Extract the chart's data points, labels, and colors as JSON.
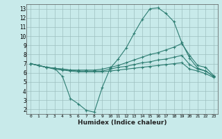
{
  "xlabel": "Humidex (Indice chaleur)",
  "xlim": [
    -0.5,
    23.5
  ],
  "ylim": [
    1.5,
    13.5
  ],
  "yticks": [
    2,
    3,
    4,
    5,
    6,
    7,
    8,
    9,
    10,
    11,
    12,
    13
  ],
  "xticks": [
    0,
    1,
    2,
    3,
    4,
    5,
    6,
    7,
    8,
    9,
    10,
    11,
    12,
    13,
    14,
    15,
    16,
    17,
    18,
    19,
    20,
    21,
    22,
    23
  ],
  "bg_color": "#c8eaea",
  "line_color": "#2e7d72",
  "grid_color": "#9dbfbf",
  "lines": [
    {
      "x": [
        0,
        1,
        2,
        3,
        4,
        5,
        6,
        7,
        8,
        9,
        10,
        11,
        12,
        13,
        14,
        15,
        16,
        17,
        18,
        19,
        20,
        21,
        22,
        23
      ],
      "y": [
        7.0,
        6.8,
        6.6,
        6.5,
        5.6,
        3.2,
        2.6,
        1.9,
        1.7,
        4.4,
        6.5,
        7.5,
        8.7,
        10.3,
        11.8,
        13.0,
        13.1,
        12.5,
        11.6,
        9.3,
        7.6,
        6.5,
        6.2,
        5.6
      ]
    },
    {
      "x": [
        0,
        1,
        2,
        3,
        4,
        5,
        6,
        7,
        8,
        9,
        10,
        11,
        12,
        13,
        14,
        15,
        16,
        17,
        18,
        19,
        20,
        21,
        22,
        23
      ],
      "y": [
        7.0,
        6.8,
        6.6,
        6.5,
        6.4,
        6.3,
        6.3,
        6.3,
        6.3,
        6.4,
        6.6,
        6.8,
        7.1,
        7.4,
        7.7,
        8.0,
        8.2,
        8.5,
        8.8,
        9.2,
        7.9,
        6.8,
        6.6,
        5.7
      ]
    },
    {
      "x": [
        0,
        1,
        2,
        3,
        4,
        5,
        6,
        7,
        8,
        9,
        10,
        11,
        12,
        13,
        14,
        15,
        16,
        17,
        18,
        19,
        20,
        21,
        22,
        23
      ],
      "y": [
        7.0,
        6.8,
        6.6,
        6.5,
        6.4,
        6.3,
        6.2,
        6.2,
        6.2,
        6.2,
        6.4,
        6.6,
        6.7,
        6.9,
        7.1,
        7.2,
        7.4,
        7.5,
        7.7,
        7.9,
        6.9,
        6.4,
        6.2,
        5.6
      ]
    },
    {
      "x": [
        0,
        1,
        2,
        3,
        4,
        5,
        6,
        7,
        8,
        9,
        10,
        11,
        12,
        13,
        14,
        15,
        16,
        17,
        18,
        19,
        20,
        21,
        22,
        23
      ],
      "y": [
        7.0,
        6.8,
        6.6,
        6.4,
        6.3,
        6.2,
        6.1,
        6.1,
        6.1,
        6.1,
        6.2,
        6.3,
        6.4,
        6.5,
        6.6,
        6.7,
        6.8,
        6.9,
        7.0,
        7.1,
        6.4,
        6.2,
        5.9,
        5.5
      ]
    }
  ]
}
